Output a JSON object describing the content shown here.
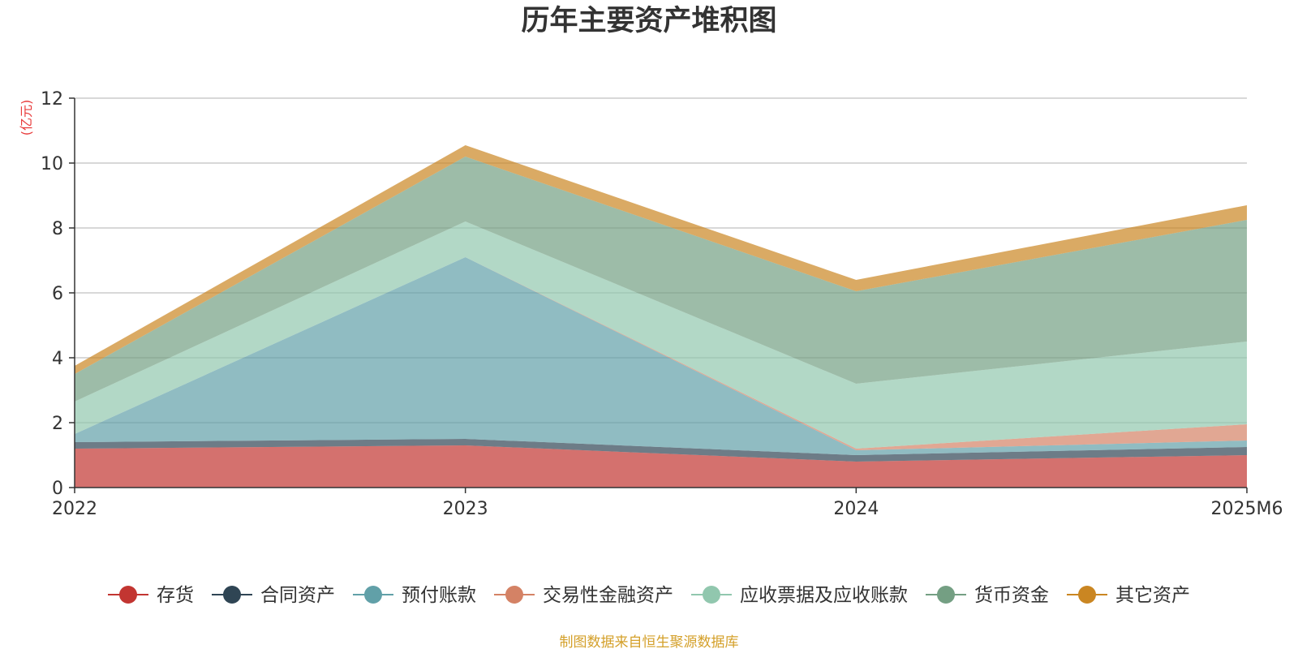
{
  "chart_data": {
    "type": "area",
    "stacked": true,
    "title": "历年主要资产堆积图",
    "unit_label": "(亿元)",
    "source": "制图数据来自恒生聚源数据库",
    "categories": [
      "2022",
      "2023",
      "2024",
      "2025M6"
    ],
    "ylim": [
      0,
      12
    ],
    "yticks": [
      0,
      2,
      4,
      6,
      8,
      10,
      12
    ],
    "grid": true,
    "legend_position": "bottom",
    "series": [
      {
        "name": "存货",
        "color": "#c23531",
        "values": [
          1.2,
          1.3,
          0.8,
          1.0
        ]
      },
      {
        "name": "合同资产",
        "color": "#2f4554",
        "values": [
          0.2,
          0.2,
          0.2,
          0.25
        ]
      },
      {
        "name": "预付账款",
        "color": "#61a0a8",
        "values": [
          0.25,
          5.6,
          0.15,
          0.2
        ]
      },
      {
        "name": "交易性金融资产",
        "color": "#d48265",
        "values": [
          0.0,
          0.0,
          0.05,
          0.5
        ]
      },
      {
        "name": "应收票据及应收账款",
        "color": "#91c7ae",
        "values": [
          1.0,
          1.1,
          2.0,
          2.55
        ]
      },
      {
        "name": "货币资金",
        "color": "#749f83",
        "values": [
          0.85,
          2.0,
          2.85,
          3.75
        ]
      },
      {
        "name": "其它资产",
        "color": "#ca8622",
        "values": [
          0.25,
          0.35,
          0.35,
          0.45
        ]
      }
    ]
  }
}
